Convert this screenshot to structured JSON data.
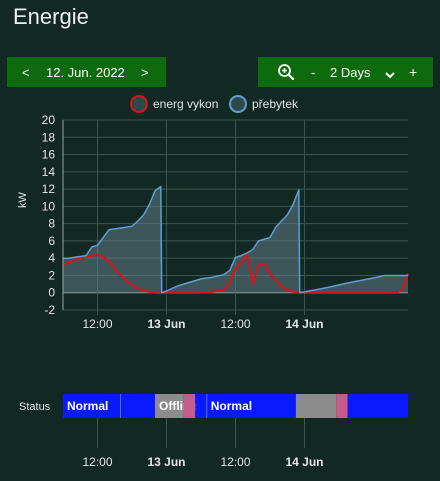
{
  "page": {
    "title": "Energie"
  },
  "date_nav": {
    "prev_label": "<",
    "date": "12. Jun. 2022",
    "next_label": ">"
  },
  "zoom_nav": {
    "zoom_icon": "zoom-in-icon",
    "minus_label": "-",
    "range_label": "2 Days",
    "plus_label": "+"
  },
  "colors": {
    "background": "#122823",
    "nav_green": "#0d6b0d",
    "energ_vykon": "#e0101a",
    "prebytek": "#5f9ed6",
    "status_normal": "#0a1aff",
    "status_offline": "#8c8c8c",
    "status_warning": "#c85a8c"
  },
  "chart_data": [
    {
      "type": "line",
      "ylabel": "kW",
      "ylim": [
        -2,
        20
      ],
      "yticks": [
        "-2",
        "0",
        "2",
        "4",
        "6",
        "8",
        "10",
        "12",
        "14",
        "16",
        "18",
        "20"
      ],
      "xticks": [
        {
          "x": "2022-06-12 12:00",
          "label": "12:00",
          "bold": false
        },
        {
          "x": "2022-06-13 00:00",
          "label": "13 Jun",
          "bold": true
        },
        {
          "x": "2022-06-13 12:00",
          "label": "12:00",
          "bold": false
        },
        {
          "x": "2022-06-14 00:00",
          "label": "14 Jun",
          "bold": true
        }
      ],
      "xlim": [
        "2022-06-12 06:00",
        "2022-06-14 18:00"
      ],
      "grid": true,
      "legend": {
        "placement": "top-center"
      },
      "series": [
        {
          "name": "energ vykon",
          "color": "#e0101a",
          "x": [
            "2022-06-12 06:00",
            "2022-06-12 08:00",
            "2022-06-12 10:00",
            "2022-06-12 11:00",
            "2022-06-12 12:00",
            "2022-06-12 13:00",
            "2022-06-12 14:00",
            "2022-06-12 15:00",
            "2022-06-12 16:00",
            "2022-06-12 17:00",
            "2022-06-12 18:00",
            "2022-06-12 19:00",
            "2022-06-12 20:00",
            "2022-06-12 21:00",
            "2022-06-12 22:00",
            "2022-06-13 00:00",
            "2022-06-13 04:00",
            "2022-06-13 06:00",
            "2022-06-13 08:00",
            "2022-06-13 10:00",
            "2022-06-13 11:00",
            "2022-06-13 12:00",
            "2022-06-13 13:00",
            "2022-06-13 14:00",
            "2022-06-13 15:00",
            "2022-06-13 16:00",
            "2022-06-13 17:00",
            "2022-06-13 18:00",
            "2022-06-13 19:00",
            "2022-06-13 20:00",
            "2022-06-13 21:00",
            "2022-06-13 22:00",
            "2022-06-14 00:00",
            "2022-06-14 04:00",
            "2022-06-14 08:00",
            "2022-06-14 12:00",
            "2022-06-14 16:00",
            "2022-06-14 17:00",
            "2022-06-14 18:00"
          ],
          "values": [
            3.2,
            3.8,
            4.2,
            4.3,
            4.4,
            4.1,
            3.6,
            2.8,
            2.0,
            1.4,
            0.9,
            0.5,
            0.2,
            0.1,
            0.0,
            0.0,
            0.0,
            0.0,
            0.1,
            0.3,
            1.2,
            2.8,
            3.5,
            4.5,
            1.0,
            3.2,
            3.4,
            2.2,
            1.4,
            0.7,
            0.3,
            0.1,
            0.0,
            0.0,
            0.0,
            0.0,
            0.0,
            0.3,
            2.2
          ]
        },
        {
          "name": "přebytek",
          "color": "#5f9ed6",
          "fill": true,
          "x": [
            "2022-06-12 06:00",
            "2022-06-12 07:00",
            "2022-06-12 08:00",
            "2022-06-12 09:00",
            "2022-06-12 10:00",
            "2022-06-12 11:00",
            "2022-06-12 12:00",
            "2022-06-12 14:00",
            "2022-06-12 16:00",
            "2022-06-12 18:00",
            "2022-06-12 19:00",
            "2022-06-12 20:00",
            "2022-06-12 21:00",
            "2022-06-12 22:00",
            "2022-06-12 23:00",
            "2022-06-12 23:10",
            "2022-06-13 00:00",
            "2022-06-13 02:00",
            "2022-06-13 04:00",
            "2022-06-13 06:00",
            "2022-06-13 08:00",
            "2022-06-13 10:00",
            "2022-06-13 11:00",
            "2022-06-13 12:00",
            "2022-06-13 13:00",
            "2022-06-13 14:00",
            "2022-06-13 15:00",
            "2022-06-13 16:00",
            "2022-06-13 18:00",
            "2022-06-13 19:00",
            "2022-06-13 20:00",
            "2022-06-13 21:00",
            "2022-06-13 22:00",
            "2022-06-13 23:00",
            "2022-06-13 23:10",
            "2022-06-14 00:00",
            "2022-06-14 04:00",
            "2022-06-14 08:00",
            "2022-06-14 12:00",
            "2022-06-14 14:00",
            "2022-06-14 16:00",
            "2022-06-14 18:00"
          ],
          "values": [
            4.0,
            4.0,
            4.1,
            4.2,
            4.3,
            5.3,
            5.5,
            7.3,
            7.5,
            7.7,
            8.3,
            9.0,
            10.2,
            11.8,
            12.3,
            0.0,
            0.2,
            0.8,
            1.2,
            1.6,
            1.8,
            2.1,
            2.6,
            4.1,
            4.3,
            4.6,
            5.0,
            6.0,
            6.4,
            7.6,
            8.3,
            9.0,
            10.2,
            11.9,
            0.0,
            0.1,
            0.6,
            1.2,
            1.7,
            2.0,
            2.0,
            2.0
          ]
        }
      ]
    },
    {
      "type": "timeline",
      "label": "Status",
      "segments": [
        {
          "from": "2022-06-12 06:00",
          "to": "2022-06-12 16:00",
          "state": "Normal",
          "color": "#0a1aff",
          "label": "Normal"
        },
        {
          "from": "2022-06-12 16:00",
          "to": "2022-06-12 22:00",
          "state": "Normal",
          "color": "#0a1aff",
          "label": ""
        },
        {
          "from": "2022-06-12 22:00",
          "to": "2022-06-13 03:00",
          "state": "Offline",
          "color": "#8c8c8c",
          "label": "Offline"
        },
        {
          "from": "2022-06-13 03:00",
          "to": "2022-06-13 05:00",
          "state": "Warning",
          "color": "#c85a8c",
          "label": ""
        },
        {
          "from": "2022-06-13 05:00",
          "to": "2022-06-13 07:00",
          "state": "Normal",
          "color": "#0a1aff",
          "label": ""
        },
        {
          "from": "2022-06-13 07:00",
          "to": "2022-06-13 22:30",
          "state": "Normal",
          "color": "#0a1aff",
          "label": "Normal"
        },
        {
          "from": "2022-06-13 22:30",
          "to": "2022-06-14 05:30",
          "state": "Offline",
          "color": "#8c8c8c",
          "label": ""
        },
        {
          "from": "2022-06-14 05:30",
          "to": "2022-06-14 07:30",
          "state": "Warning",
          "color": "#c85a8c",
          "label": ""
        },
        {
          "from": "2022-06-14 07:30",
          "to": "2022-06-14 18:00",
          "state": "Normal",
          "color": "#0a1aff",
          "label": ""
        }
      ],
      "xticks": [
        {
          "x": "2022-06-12 12:00",
          "label": "12:00",
          "bold": false
        },
        {
          "x": "2022-06-13 00:00",
          "label": "13 Jun",
          "bold": true
        },
        {
          "x": "2022-06-13 12:00",
          "label": "12:00",
          "bold": false
        },
        {
          "x": "2022-06-14 00:00",
          "label": "14 Jun",
          "bold": true
        }
      ]
    }
  ]
}
